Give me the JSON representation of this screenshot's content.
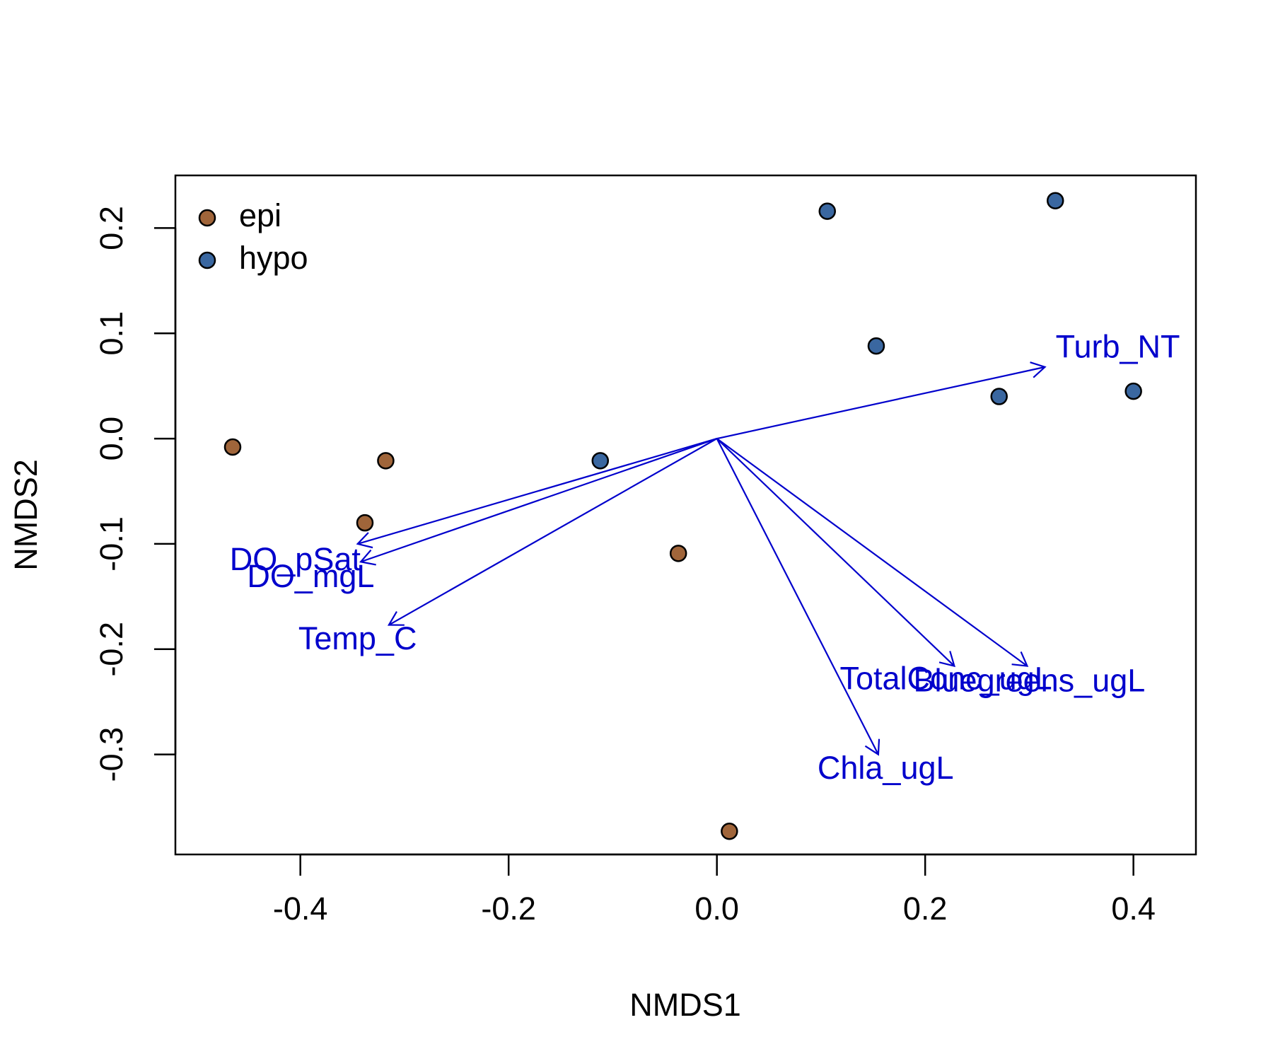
{
  "chart_data": {
    "type": "scatter",
    "title": "",
    "xlabel": "NMDS1",
    "ylabel": "NMDS2",
    "xlim": [
      -0.52,
      0.46
    ],
    "ylim": [
      -0.395,
      0.25
    ],
    "x_ticks": [
      -0.4,
      -0.2,
      0.0,
      0.2,
      0.4
    ],
    "x_tick_labels": [
      "-0.4",
      "-0.2",
      "0.0",
      "0.2",
      "0.4"
    ],
    "y_ticks": [
      -0.3,
      -0.2,
      -0.1,
      0.0,
      0.1,
      0.2
    ],
    "y_tick_labels": [
      "-0.3",
      "-0.2",
      "-0.1",
      "0.0",
      "0.1",
      "0.2"
    ],
    "grid": false,
    "legend_position": "top-left",
    "series": [
      {
        "name": "epi",
        "color": "#A0653A",
        "points": [
          {
            "x": -0.465,
            "y": -0.008
          },
          {
            "x": -0.318,
            "y": -0.021
          },
          {
            "x": -0.338,
            "y": -0.08
          },
          {
            "x": -0.037,
            "y": -0.109
          },
          {
            "x": 0.012,
            "y": -0.373
          }
        ]
      },
      {
        "name": "hypo",
        "color": "#3A67A0",
        "points": [
          {
            "x": 0.106,
            "y": 0.216
          },
          {
            "x": 0.325,
            "y": 0.226
          },
          {
            "x": 0.153,
            "y": 0.088
          },
          {
            "x": 0.271,
            "y": 0.04
          },
          {
            "x": 0.4,
            "y": 0.045
          },
          {
            "x": -0.112,
            "y": -0.021
          }
        ]
      }
    ],
    "vectors": {
      "color": "#0000CC",
      "origin": {
        "x": 0.0,
        "y": 0.0
      },
      "items": [
        {
          "name": "Turb_NT",
          "x": 0.315,
          "y": 0.068,
          "label_x": 0.385,
          "label_y": 0.085
        },
        {
          "name": "DO_pSat",
          "x": -0.345,
          "y": -0.1,
          "label_x": -0.405,
          "label_y": -0.117
        },
        {
          "name": "DO_mgL",
          "x": -0.342,
          "y": -0.117,
          "label_x": -0.39,
          "label_y": -0.133
        },
        {
          "name": "Temp_C",
          "x": -0.315,
          "y": -0.177,
          "label_x": -0.345,
          "label_y": -0.192
        },
        {
          "name": "TotalConc_ugL",
          "x": 0.228,
          "y": -0.216,
          "label_x": 0.22,
          "label_y": -0.23
        },
        {
          "name": "Bluegreens_ugL",
          "x": 0.298,
          "y": -0.216,
          "label_x": 0.3,
          "label_y": -0.232
        },
        {
          "name": "Chla_ugL",
          "x": 0.155,
          "y": -0.3,
          "label_x": 0.162,
          "label_y": -0.315
        }
      ]
    }
  }
}
